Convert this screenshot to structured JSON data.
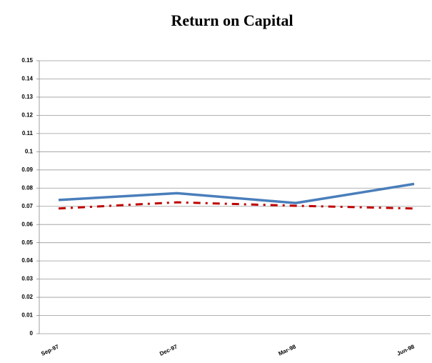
{
  "chart_data": {
    "type": "line",
    "title": "Return on Capital",
    "categories": [
      "Sep-97",
      "Dec-97",
      "Mar-98",
      "Jun-98"
    ],
    "series": [
      {
        "color": "#4a7ebb",
        "values": [
          0.0735,
          0.0772,
          0.0718,
          0.0823
        ]
      },
      {
        "color": "#c00000",
        "dashed": true,
        "values": [
          0.0688,
          0.0722,
          0.0703,
          0.0688
        ]
      }
    ],
    "ylim": [
      0,
      0.15
    ],
    "yticks": [
      0,
      0.01,
      0.02,
      0.03,
      0.04,
      0.05,
      0.06,
      0.07,
      0.08,
      0.09,
      0.1,
      0.11,
      0.12,
      0.13,
      0.14,
      0.15
    ],
    "grid": true
  }
}
